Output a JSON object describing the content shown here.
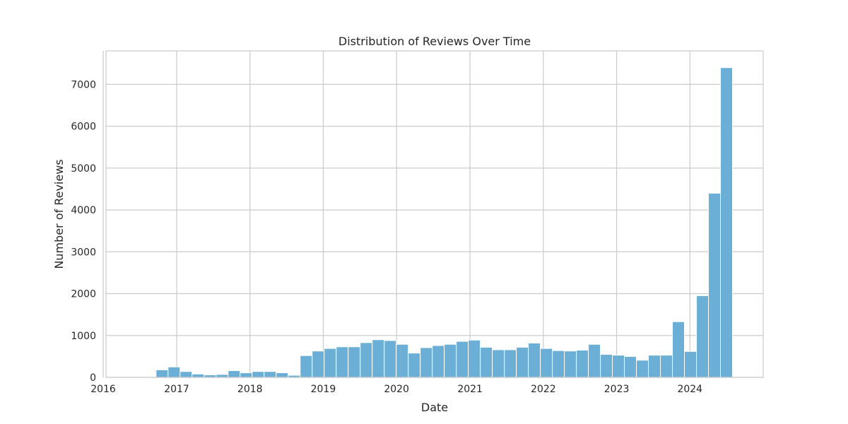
{
  "chart_data": {
    "type": "bar",
    "title": "Distribution of Reviews Over Time",
    "xlabel": "Date",
    "ylabel": "Number of Reviews",
    "grid": true,
    "colors": {
      "bar": "#6baed6",
      "grid": "#cccccc",
      "text": "#262626"
    },
    "xlim": [
      "2016-01-15",
      "2024-12-31"
    ],
    "ylim": [
      0,
      7800
    ],
    "xticks": [
      {
        "date": "2016-01-01",
        "label": "2016"
      },
      {
        "date": "2017-01-01",
        "label": "2017"
      },
      {
        "date": "2018-01-01",
        "label": "2018"
      },
      {
        "date": "2019-01-01",
        "label": "2019"
      },
      {
        "date": "2020-01-01",
        "label": "2020"
      },
      {
        "date": "2021-01-01",
        "label": "2021"
      },
      {
        "date": "2022-01-01",
        "label": "2022"
      },
      {
        "date": "2023-01-01",
        "label": "2023"
      },
      {
        "date": "2024-01-01",
        "label": "2024"
      }
    ],
    "yticks": [
      0,
      1000,
      2000,
      3000,
      4000,
      5000,
      6000,
      7000
    ],
    "bin_start": "2016-01-25",
    "bin_end": "2024-07-31",
    "values": [
      0,
      0,
      0,
      0,
      180,
      250,
      140,
      80,
      60,
      70,
      160,
      110,
      140,
      140,
      110,
      50,
      520,
      630,
      690,
      730,
      730,
      830,
      900,
      880,
      790,
      580,
      710,
      760,
      790,
      860,
      890,
      720,
      660,
      660,
      720,
      820,
      690,
      640,
      630,
      650,
      790,
      550,
      530,
      500,
      410,
      530,
      530,
      1330,
      620,
      1950,
      4400,
      7400
    ]
  }
}
